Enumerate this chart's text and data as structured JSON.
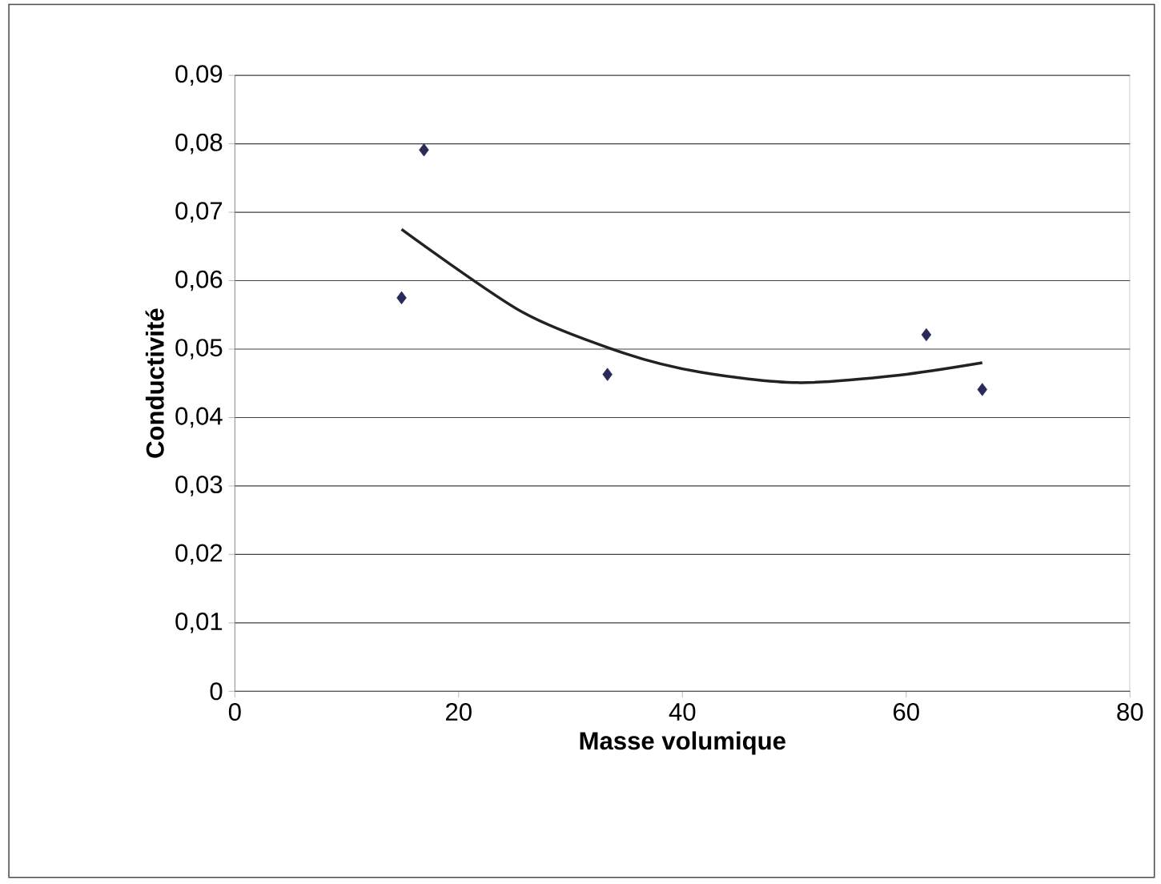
{
  "chart_data": {
    "type": "scatter",
    "xlabel": "Masse volumique",
    "ylabel": "Conductivité",
    "xlim": [
      0,
      80
    ],
    "xticks": [
      0,
      20,
      40,
      60,
      80
    ],
    "ylim": [
      0,
      0.09
    ],
    "yticks": [
      {
        "value": 0,
        "label": "0"
      },
      {
        "value": 0.01,
        "label": "0,01"
      },
      {
        "value": 0.02,
        "label": "0,02"
      },
      {
        "value": 0.03,
        "label": "0,03"
      },
      {
        "value": 0.04,
        "label": "0,04"
      },
      {
        "value": 0.05,
        "label": "0,05"
      },
      {
        "value": 0.06,
        "label": "0,06"
      },
      {
        "value": 0.07,
        "label": "0,07"
      },
      {
        "value": 0.08,
        "label": "0,08"
      },
      {
        "value": 0.09,
        "label": "0,09"
      }
    ],
    "grid": "y",
    "marker": "diamond",
    "series": [
      {
        "color": "#2a2a5a",
        "x": [
          14.9,
          16.9,
          33.3,
          61.8,
          66.8
        ],
        "values": [
          0.0575,
          0.0791,
          0.0463,
          0.0521,
          0.0441
        ]
      },
      {
        "type": "line",
        "color": "#222222",
        "marker": "none",
        "x": [
          14.9,
          25.7,
          34.8,
          41.7,
          50.3,
          59.4,
          66.8
        ],
        "values": [
          0.0675,
          0.0554,
          0.0494,
          0.0466,
          0.0451,
          0.0462,
          0.048
        ]
      }
    ]
  }
}
